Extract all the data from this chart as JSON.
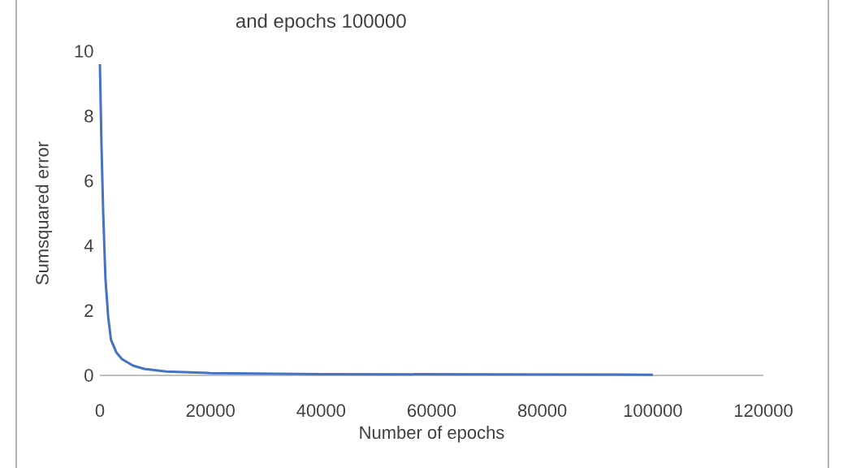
{
  "chart_data": {
    "type": "line",
    "title": "and epochs 100000",
    "xlabel": "Number of epochs",
    "ylabel": "Sumsquared error",
    "series": [
      {
        "color": "#4472c4",
        "x": [
          0,
          300,
          600,
          1000,
          1500,
          2000,
          3000,
          4000,
          6000,
          8000,
          12000,
          20000,
          40000,
          70000,
          100000
        ],
        "values": [
          9.6,
          7,
          5,
          3,
          1.8,
          1.1,
          0.7,
          0.5,
          0.3,
          0.2,
          0.12,
          0.07,
          0.04,
          0.03,
          0.02
        ]
      }
    ],
    "xlim": [
      0,
      120000
    ],
    "ylim": [
      0,
      10
    ],
    "xticks": [
      0,
      20000,
      40000,
      60000,
      80000,
      100000,
      120000
    ],
    "yticks": [
      0,
      2,
      4,
      6,
      8,
      10
    ],
    "grid": false,
    "marker": "none",
    "line_style": "solid"
  }
}
